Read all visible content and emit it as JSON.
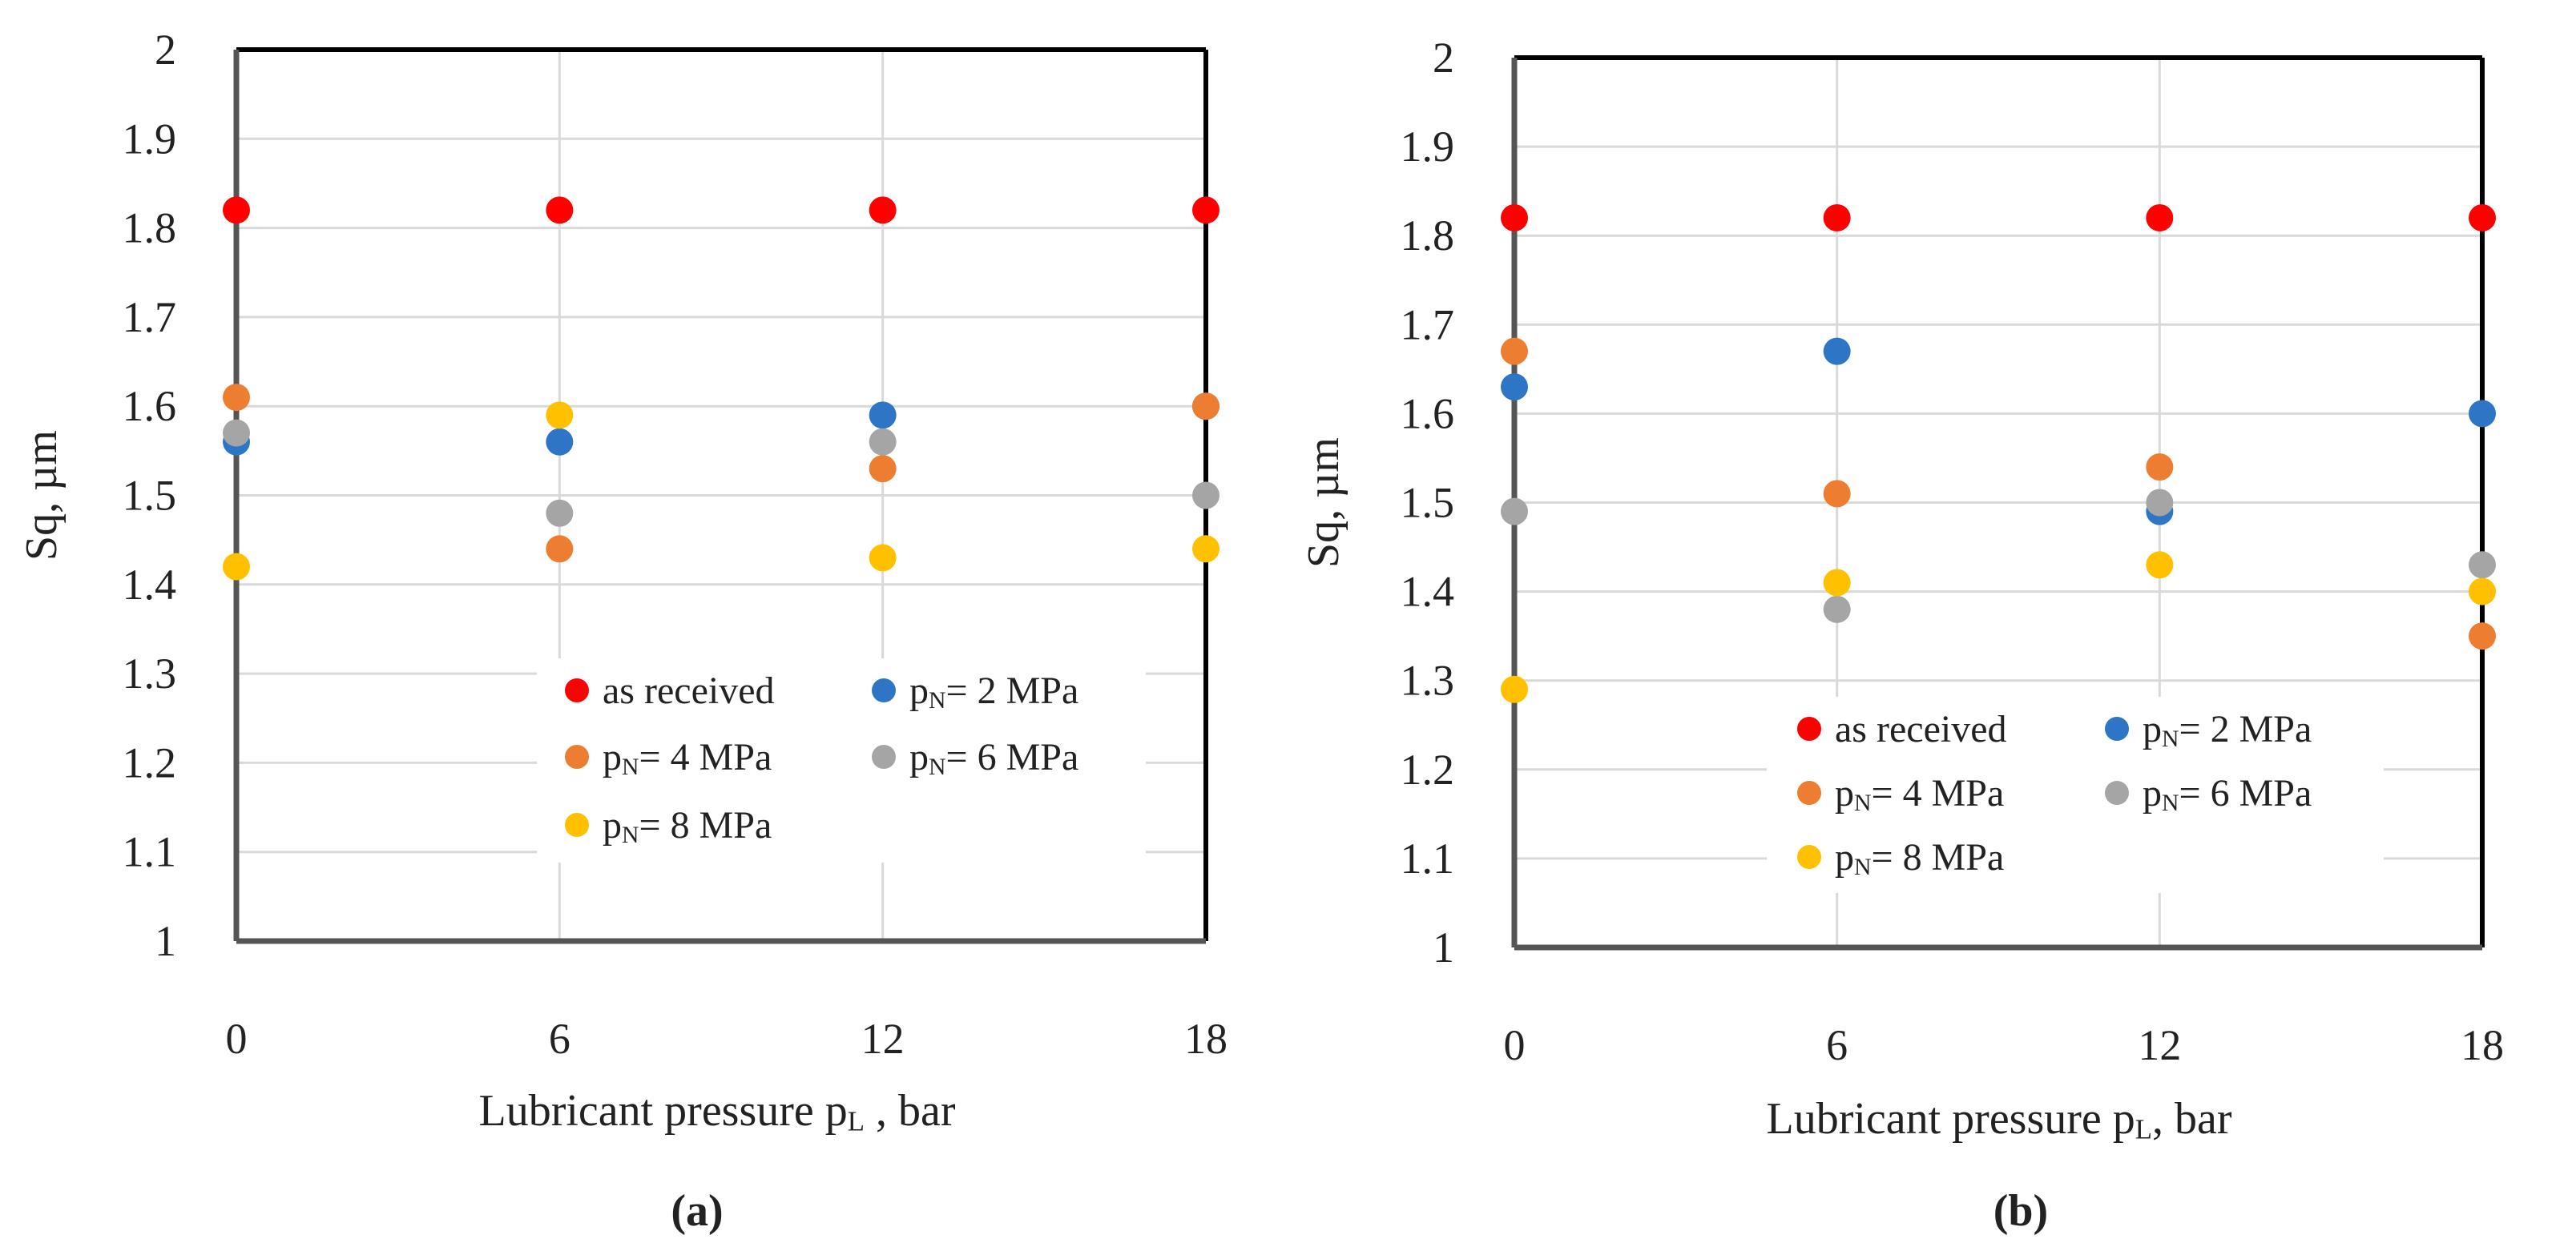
{
  "chart_data": [
    {
      "type": "scatter",
      "panel_label": "(a)",
      "x": [
        0,
        6,
        12,
        18
      ],
      "xlabel": {
        "main": "Lubricant pressure p",
        "sub": "L",
        "rest": " , bar"
      },
      "ylabel": "Sq, µm",
      "xlim": [
        0,
        18
      ],
      "ylim": [
        1,
        2
      ],
      "xticks": [
        "0",
        "6",
        "12",
        "18"
      ],
      "yticks": [
        "1",
        "1.1",
        "1.2",
        "1.3",
        "1.4",
        "1.5",
        "1.6",
        "1.7",
        "1.8",
        "1.9",
        "2"
      ],
      "grid": true,
      "legend_position": "bottom-right",
      "series": [
        {
          "name": "as received",
          "label": {
            "main": "as received",
            "sub": "",
            "rest": ""
          },
          "color": "#ff0000",
          "values": [
            1.82,
            1.82,
            1.82,
            1.82
          ]
        },
        {
          "name": "pN= 2 MPa",
          "label": {
            "main": "p",
            "sub": "N",
            "rest": "= 2 MPa"
          },
          "color": "#2e75c6",
          "values": [
            1.56,
            1.56,
            1.59,
            1.6
          ]
        },
        {
          "name": "pN= 4 MPa",
          "label": {
            "main": "p",
            "sub": "N",
            "rest": "= 4 MPa"
          },
          "color": "#ed7d31",
          "values": [
            1.61,
            1.44,
            1.53,
            1.6
          ]
        },
        {
          "name": "pN= 6 MPa",
          "label": {
            "main": "p",
            "sub": "N",
            "rest": "= 6 MPa"
          },
          "color": "#a5a5a5",
          "values": [
            1.57,
            1.48,
            1.56,
            1.5
          ]
        },
        {
          "name": "pN= 8 MPa",
          "label": {
            "main": "p",
            "sub": "N",
            "rest": "= 8 MPa"
          },
          "color": "#ffc000",
          "values": [
            1.42,
            1.59,
            1.43,
            1.44
          ]
        }
      ]
    },
    {
      "type": "scatter",
      "panel_label": "(b)",
      "x": [
        0,
        6,
        12,
        18
      ],
      "xlabel": {
        "main": "Lubricant pressure p",
        "sub": "L",
        "rest": ", bar"
      },
      "ylabel": "Sq, µm",
      "xlim": [
        0,
        18
      ],
      "ylim": [
        1,
        2
      ],
      "xticks": [
        "0",
        "6",
        "12",
        "18"
      ],
      "yticks": [
        "1",
        "1.1",
        "1.2",
        "1.3",
        "1.4",
        "1.5",
        "1.6",
        "1.7",
        "1.8",
        "1.9",
        "2"
      ],
      "grid": true,
      "legend_position": "bottom-right",
      "series": [
        {
          "name": "as received",
          "label": {
            "main": "as received",
            "sub": "",
            "rest": ""
          },
          "color": "#ff0000",
          "values": [
            1.82,
            1.82,
            1.82,
            1.82
          ]
        },
        {
          "name": "pN= 2 MPa",
          "label": {
            "main": "p",
            "sub": "N",
            "rest": "= 2 MPa"
          },
          "color": "#2e75c6",
          "values": [
            1.63,
            1.67,
            1.49,
            1.6
          ]
        },
        {
          "name": "pN= 4 MPa",
          "label": {
            "main": "p",
            "sub": "N",
            "rest": "= 4 MPa"
          },
          "color": "#ed7d31",
          "values": [
            1.67,
            1.51,
            1.54,
            1.35
          ]
        },
        {
          "name": "pN= 6 MPa",
          "label": {
            "main": "p",
            "sub": "N",
            "rest": "= 6 MPa"
          },
          "color": "#a5a5a5",
          "values": [
            1.49,
            1.38,
            1.5,
            1.43
          ]
        },
        {
          "name": "pN= 8 MPa",
          "label": {
            "main": "p",
            "sub": "N",
            "rest": "= 8 MPa"
          },
          "color": "#ffc000",
          "values": [
            1.29,
            1.41,
            1.43,
            1.4
          ]
        }
      ]
    }
  ]
}
